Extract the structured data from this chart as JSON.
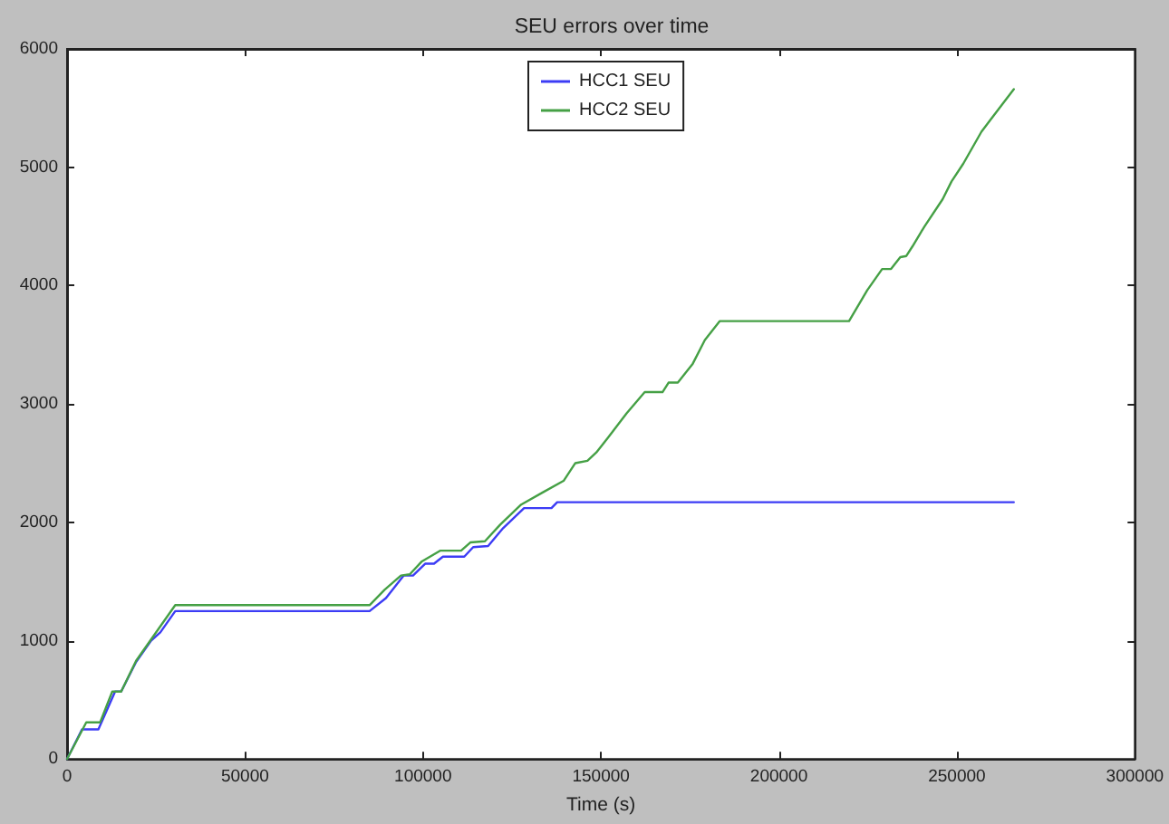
{
  "chart_data": {
    "type": "line",
    "title": "SEU errors over time",
    "xlabel": "Time (s)",
    "xlim": [
      0,
      300000
    ],
    "xticks": [
      0,
      50000,
      100000,
      150000,
      200000,
      250000,
      300000
    ],
    "ylim": [
      0,
      6000
    ],
    "yticks": [
      0,
      1000,
      2000,
      3000,
      4000,
      5000,
      6000
    ],
    "grid": false,
    "legend": "top",
    "marker": "none",
    "line_style": "solid",
    "series": [
      {
        "name": "HCC1 SEU",
        "color": "#3c3cf5",
        "x": [
          0,
          4200,
          8800,
          13500,
          15200,
          19400,
          23600,
          26200,
          30400,
          85000,
          89600,
          94600,
          97200,
          100600,
          103100,
          105600,
          111600,
          114100,
          118300,
          122500,
          128400,
          136100,
          137700,
          266000
        ],
        "values": [
          0,
          250,
          250,
          570,
          570,
          820,
          1000,
          1070,
          1250,
          1250,
          1360,
          1550,
          1550,
          1650,
          1650,
          1710,
          1710,
          1790,
          1800,
          1950,
          2120,
          2120,
          2170,
          2170
        ]
      },
      {
        "name": "HCC2 SEU",
        "color": "#45a045",
        "x": [
          0,
          5400,
          9300,
          12700,
          15200,
          19400,
          23600,
          30400,
          85000,
          89200,
          93800,
          96300,
          99700,
          104800,
          110700,
          113300,
          117400,
          121700,
          127600,
          133500,
          139500,
          142800,
          146200,
          148700,
          152100,
          157200,
          162300,
          167300,
          169000,
          171600,
          175800,
          179200,
          183400,
          219700,
          224800,
          229000,
          231500,
          234100,
          235800,
          237500,
          240900,
          246000,
          248500,
          251800,
          256900,
          259400,
          266000
        ],
        "values": [
          0,
          310,
          310,
          570,
          570,
          830,
          1010,
          1300,
          1300,
          1430,
          1550,
          1560,
          1670,
          1760,
          1760,
          1830,
          1840,
          1980,
          2150,
          2250,
          2350,
          2500,
          2520,
          2590,
          2720,
          2920,
          3100,
          3100,
          3180,
          3180,
          3340,
          3540,
          3700,
          3700,
          3960,
          4140,
          4140,
          4240,
          4250,
          4330,
          4500,
          4730,
          4880,
          5030,
          5300,
          5400,
          5660
        ]
      }
    ]
  }
}
